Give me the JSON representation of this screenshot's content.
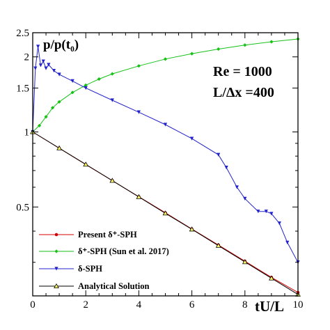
{
  "chart_data": {
    "type": "line",
    "xlabel": "tU/L",
    "ylabel": "p/p(t₀)",
    "xlim": [
      0,
      10
    ],
    "ylim": [
      0.22,
      2.5
    ],
    "yscale": "log",
    "x_ticks": [
      "0",
      "2",
      "4",
      "6",
      "8",
      "10"
    ],
    "y_ticks": [
      {
        "v": 0.5,
        "label": "0.5"
      },
      {
        "v": 1,
        "label": "1"
      },
      {
        "v": 1.5,
        "label": "1.5"
      },
      {
        "v": 2,
        "label": "2"
      },
      {
        "v": 2.5,
        "label": "2.5"
      }
    ],
    "annotations": [
      "Re = 1000",
      "L/Δx =400"
    ],
    "grid": false,
    "legend_position": "bottom-left",
    "series": [
      {
        "name": "Present δ⁺-SPH",
        "color": "#d40000",
        "marker": "circle",
        "x": [
          0,
          1,
          2,
          3,
          4,
          5,
          6,
          7,
          8,
          9,
          10
        ],
        "y": [
          1.0,
          0.86,
          0.74,
          0.638,
          0.55,
          0.474,
          0.408,
          0.352,
          0.303,
          0.261,
          0.227
        ]
      },
      {
        "name": "δ⁺-SPH (Sun et al. 2017)",
        "color": "#16c216",
        "marker": "diamond",
        "x": [
          0,
          0.25,
          0.5,
          0.75,
          1,
          1.5,
          2,
          2.5,
          3,
          4,
          5,
          6,
          7,
          8,
          9,
          10
        ],
        "y": [
          1.0,
          1.06,
          1.15,
          1.25,
          1.32,
          1.44,
          1.54,
          1.63,
          1.71,
          1.84,
          1.96,
          2.06,
          2.15,
          2.23,
          2.3,
          2.36
        ]
      },
      {
        "name": "δ-SPH",
        "color": "#2222cc",
        "marker": "triangle-down",
        "x": [
          0,
          0.1,
          0.2,
          0.3,
          0.4,
          0.5,
          0.6,
          0.8,
          1,
          1.5,
          2,
          3,
          4,
          5,
          6,
          7,
          7.3,
          7.7,
          8,
          8.5,
          8.8,
          9,
          9.3,
          9.6,
          10
        ],
        "y": [
          1.0,
          1.8,
          2.2,
          1.85,
          1.92,
          1.8,
          1.86,
          1.76,
          1.7,
          1.6,
          1.5,
          1.34,
          1.2,
          1.07,
          0.94,
          0.81,
          0.72,
          0.6,
          0.54,
          0.48,
          0.48,
          0.47,
          0.43,
          0.36,
          0.3
        ]
      },
      {
        "name": "Analytical Solution",
        "color": "#000000",
        "marker": "triangle-up",
        "x": [
          0,
          1,
          2,
          3,
          4,
          5,
          6,
          7,
          8,
          9,
          10
        ],
        "y": [
          1.0,
          0.861,
          0.741,
          0.638,
          0.549,
          0.472,
          0.407,
          0.35,
          0.301,
          0.259,
          0.223
        ]
      }
    ]
  }
}
